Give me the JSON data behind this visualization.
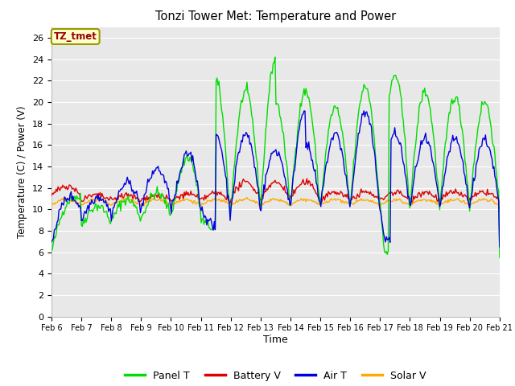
{
  "title": "Tonzi Tower Met: Temperature and Power",
  "xlabel": "Time",
  "ylabel": "Temperature (C) / Power (V)",
  "annotation": "TZ_tmet",
  "ylim": [
    0,
    27
  ],
  "yticks": [
    0,
    2,
    4,
    6,
    8,
    10,
    12,
    14,
    16,
    18,
    20,
    22,
    24,
    26
  ],
  "xtick_labels": [
    "Feb 6",
    "Feb 7",
    "Feb 8",
    "Feb 9",
    "Feb 10",
    "Feb 11",
    "Feb 12",
    "Feb 13",
    "Feb 14",
    "Feb 15",
    "Feb 16",
    "Feb 17",
    "Feb 18",
    "Feb 19",
    "Feb 20",
    "Feb 21"
  ],
  "colors": {
    "panel_t": "#00DD00",
    "battery_v": "#DD0000",
    "air_t": "#0000DD",
    "solar_v": "#FFAA00"
  },
  "bg_color": "#FFFFFF",
  "plot_bg": "#E8E8E8",
  "grid_color": "#FFFFFF",
  "legend_labels": [
    "Panel T",
    "Battery V",
    "Air T",
    "Solar V"
  ]
}
